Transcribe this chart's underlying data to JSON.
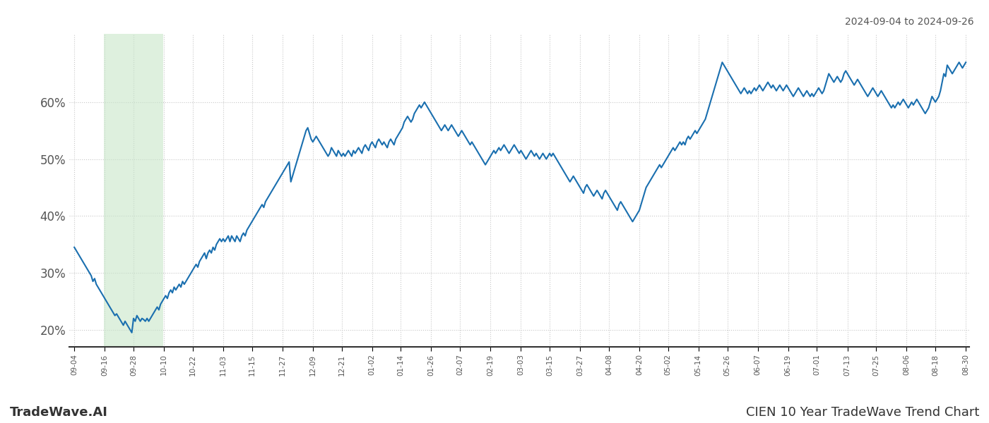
{
  "title_top_right": "2024-09-04 to 2024-09-26",
  "title_bottom_left": "TradeWave.AI",
  "title_bottom_right": "CIEN 10 Year TradeWave Trend Chart",
  "line_color": "#1a6faf",
  "line_width": 1.5,
  "background_color": "#ffffff",
  "grid_color": "#c8c8c8",
  "grid_linestyle": "dotted",
  "highlight_color": "#c8e6c9",
  "highlight_alpha": 0.6,
  "ylim": [
    17,
    72
  ],
  "yticks": [
    20,
    30,
    40,
    50,
    60
  ],
  "ytick_labels": [
    "20%",
    "30%",
    "40%",
    "50%",
    "60%"
  ],
  "x_labels": [
    "09-04",
    "09-16",
    "09-28",
    "10-10",
    "10-22",
    "11-03",
    "11-15",
    "11-27",
    "12-09",
    "12-21",
    "01-02",
    "01-14",
    "01-26",
    "02-07",
    "02-19",
    "03-03",
    "03-15",
    "03-27",
    "04-08",
    "04-20",
    "05-02",
    "05-14",
    "05-26",
    "06-07",
    "06-19",
    "07-01",
    "07-13",
    "07-25",
    "08-06",
    "08-18",
    "08-30"
  ],
  "values": [
    34.5,
    34.0,
    33.5,
    33.0,
    32.5,
    32.0,
    31.5,
    31.0,
    30.5,
    30.0,
    29.5,
    28.5,
    29.0,
    28.0,
    27.5,
    27.0,
    26.5,
    26.0,
    25.5,
    25.0,
    24.5,
    24.0,
    23.5,
    23.0,
    22.5,
    22.8,
    22.3,
    21.8,
    21.3,
    20.8,
    21.5,
    21.0,
    20.5,
    20.0,
    19.5,
    22.0,
    21.5,
    22.5,
    22.0,
    21.5,
    22.0,
    21.8,
    21.5,
    22.0,
    21.5,
    22.0,
    22.5,
    23.0,
    23.5,
    24.0,
    23.5,
    24.5,
    25.0,
    25.5,
    26.0,
    25.5,
    26.5,
    27.0,
    26.5,
    27.5,
    27.0,
    27.5,
    28.0,
    27.5,
    28.5,
    28.0,
    28.5,
    29.0,
    29.5,
    30.0,
    30.5,
    31.0,
    31.5,
    31.0,
    32.0,
    32.5,
    33.0,
    33.5,
    32.5,
    33.5,
    34.0,
    33.5,
    34.5,
    34.0,
    35.0,
    35.5,
    36.0,
    35.5,
    36.0,
    35.5,
    36.0,
    36.5,
    35.5,
    36.5,
    36.0,
    35.5,
    36.5,
    36.0,
    35.5,
    36.5,
    37.0,
    36.5,
    37.5,
    38.0,
    38.5,
    39.0,
    39.5,
    40.0,
    40.5,
    41.0,
    41.5,
    42.0,
    41.5,
    42.5,
    43.0,
    43.5,
    44.0,
    44.5,
    45.0,
    45.5,
    46.0,
    46.5,
    47.0,
    47.5,
    48.0,
    48.5,
    49.0,
    49.5,
    46.0,
    47.0,
    48.0,
    49.0,
    50.0,
    51.0,
    52.0,
    53.0,
    54.0,
    55.0,
    55.5,
    54.5,
    53.5,
    53.0,
    53.5,
    54.0,
    53.5,
    53.0,
    52.5,
    52.0,
    51.5,
    51.0,
    50.5,
    51.0,
    52.0,
    51.5,
    51.0,
    50.5,
    51.5,
    51.0,
    50.5,
    51.0,
    50.5,
    51.0,
    51.5,
    51.0,
    50.5,
    51.5,
    51.0,
    51.5,
    52.0,
    51.5,
    51.0,
    52.0,
    52.5,
    52.0,
    51.5,
    52.5,
    53.0,
    52.5,
    52.0,
    53.0,
    53.5,
    53.0,
    52.5,
    53.0,
    52.5,
    52.0,
    53.0,
    53.5,
    53.0,
    52.5,
    53.5,
    54.0,
    54.5,
    55.0,
    55.5,
    56.5,
    57.0,
    57.5,
    57.0,
    56.5,
    57.0,
    58.0,
    58.5,
    59.0,
    59.5,
    59.0,
    59.5,
    60.0,
    59.5,
    59.0,
    58.5,
    58.0,
    57.5,
    57.0,
    56.5,
    56.0,
    55.5,
    55.0,
    55.5,
    56.0,
    55.5,
    55.0,
    55.5,
    56.0,
    55.5,
    55.0,
    54.5,
    54.0,
    54.5,
    55.0,
    54.5,
    54.0,
    53.5,
    53.0,
    52.5,
    53.0,
    52.5,
    52.0,
    51.5,
    51.0,
    50.5,
    50.0,
    49.5,
    49.0,
    49.5,
    50.0,
    50.5,
    51.0,
    51.5,
    51.0,
    51.5,
    52.0,
    51.5,
    52.0,
    52.5,
    52.0,
    51.5,
    51.0,
    51.5,
    52.0,
    52.5,
    52.0,
    51.5,
    51.0,
    51.5,
    51.0,
    50.5,
    50.0,
    50.5,
    51.0,
    51.5,
    51.0,
    50.5,
    51.0,
    50.5,
    50.0,
    50.5,
    51.0,
    50.5,
    50.0,
    50.5,
    51.0,
    50.5,
    51.0,
    50.5,
    50.0,
    49.5,
    49.0,
    48.5,
    48.0,
    47.5,
    47.0,
    46.5,
    46.0,
    46.5,
    47.0,
    46.5,
    46.0,
    45.5,
    45.0,
    44.5,
    44.0,
    45.0,
    45.5,
    45.0,
    44.5,
    44.0,
    43.5,
    44.0,
    44.5,
    44.0,
    43.5,
    43.0,
    44.0,
    44.5,
    44.0,
    43.5,
    43.0,
    42.5,
    42.0,
    41.5,
    41.0,
    42.0,
    42.5,
    42.0,
    41.5,
    41.0,
    40.5,
    40.0,
    39.5,
    39.0,
    39.5,
    40.0,
    40.5,
    41.0,
    42.0,
    43.0,
    44.0,
    45.0,
    45.5,
    46.0,
    46.5,
    47.0,
    47.5,
    48.0,
    48.5,
    49.0,
    48.5,
    49.0,
    49.5,
    50.0,
    50.5,
    51.0,
    51.5,
    52.0,
    51.5,
    52.0,
    52.5,
    53.0,
    52.5,
    53.0,
    52.5,
    53.5,
    54.0,
    53.5,
    54.0,
    54.5,
    55.0,
    54.5,
    55.0,
    55.5,
    56.0,
    56.5,
    57.0,
    58.0,
    59.0,
    60.0,
    61.0,
    62.0,
    63.0,
    64.0,
    65.0,
    66.0,
    67.0,
    66.5,
    66.0,
    65.5,
    65.0,
    64.5,
    64.0,
    63.5,
    63.0,
    62.5,
    62.0,
    61.5,
    62.0,
    62.5,
    62.0,
    61.5,
    62.0,
    61.5,
    62.0,
    62.5,
    62.0,
    62.5,
    63.0,
    62.5,
    62.0,
    62.5,
    63.0,
    63.5,
    63.0,
    62.5,
    63.0,
    62.5,
    62.0,
    62.5,
    63.0,
    62.5,
    62.0,
    62.5,
    63.0,
    62.5,
    62.0,
    61.5,
    61.0,
    61.5,
    62.0,
    62.5,
    62.0,
    61.5,
    61.0,
    61.5,
    62.0,
    61.5,
    61.0,
    61.5,
    61.0,
    61.5,
    62.0,
    62.5,
    62.0,
    61.5,
    62.0,
    63.0,
    64.0,
    65.0,
    64.5,
    64.0,
    63.5,
    64.0,
    64.5,
    64.0,
    63.5,
    64.0,
    65.0,
    65.5,
    65.0,
    64.5,
    64.0,
    63.5,
    63.0,
    63.5,
    64.0,
    63.5,
    63.0,
    62.5,
    62.0,
    61.5,
    61.0,
    61.5,
    62.0,
    62.5,
    62.0,
    61.5,
    61.0,
    61.5,
    62.0,
    61.5,
    61.0,
    60.5,
    60.0,
    59.5,
    59.0,
    59.5,
    59.0,
    59.5,
    60.0,
    59.5,
    60.0,
    60.5,
    60.0,
    59.5,
    59.0,
    59.5,
    60.0,
    59.5,
    60.0,
    60.5,
    60.0,
    59.5,
    59.0,
    58.5,
    58.0,
    58.5,
    59.0,
    60.0,
    61.0,
    60.5,
    60.0,
    60.5,
    61.0,
    62.0,
    63.5,
    65.0,
    64.5,
    66.5,
    66.0,
    65.5,
    65.0,
    65.5,
    66.0,
    66.5,
    67.0,
    66.5,
    66.0,
    66.5,
    67.0
  ]
}
